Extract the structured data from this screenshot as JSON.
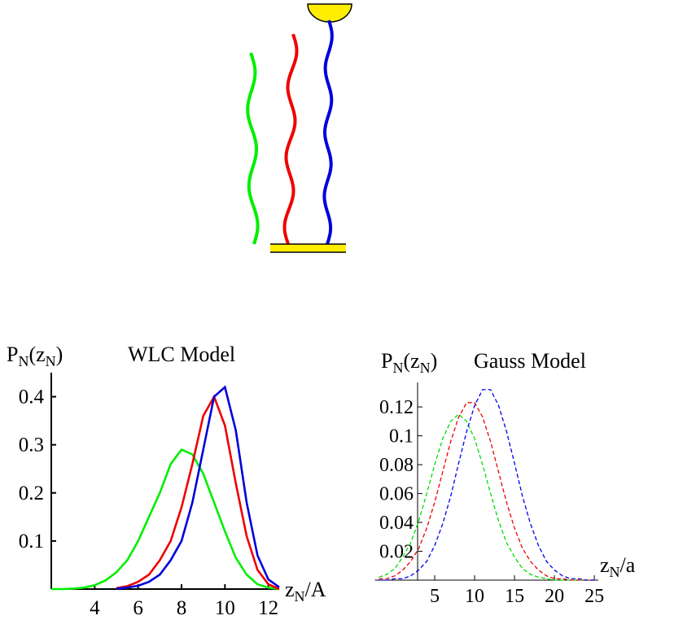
{
  "chart_data": [
    {
      "type": "line",
      "title": "WLC  Model",
      "y_label": [
        "P",
        "N",
        "(z",
        "N",
        ")"
      ],
      "x_label": [
        "z",
        "N",
        "/A"
      ],
      "x": [
        2,
        2.5,
        3,
        3.5,
        4,
        4.5,
        5,
        5.5,
        6,
        6.5,
        7,
        7.5,
        8,
        8.5,
        9,
        9.5,
        10,
        10.5,
        11,
        11.5,
        12,
        12.5
      ],
      "series": [
        {
          "color": "#00ee00",
          "dashed": false,
          "values": [
            0,
            0,
            0.001,
            0.003,
            0.008,
            0.018,
            0.035,
            0.06,
            0.1,
            0.15,
            0.2,
            0.26,
            0.29,
            0.28,
            0.24,
            0.18,
            0.12,
            0.065,
            0.03,
            0.01,
            0.003,
            0
          ]
        },
        {
          "color": "#ee0000",
          "dashed": false,
          "values": [
            null,
            null,
            null,
            null,
            null,
            null,
            0.002,
            0.006,
            0.015,
            0.03,
            0.06,
            0.1,
            0.17,
            0.26,
            0.36,
            0.4,
            0.34,
            0.22,
            0.11,
            0.04,
            0.01,
            0
          ]
        },
        {
          "color": "#0000dd",
          "dashed": false,
          "values": [
            null,
            null,
            null,
            null,
            null,
            null,
            0.001,
            0.003,
            0.007,
            0.015,
            0.03,
            0.06,
            0.1,
            0.18,
            0.29,
            0.4,
            0.42,
            0.33,
            0.18,
            0.07,
            0.02,
            0.004
          ]
        }
      ],
      "xlim": [
        2,
        12.5
      ],
      "xticks": [
        4,
        6,
        8,
        10,
        12
      ],
      "ylim": [
        0,
        0.45
      ],
      "yticks": [
        0.1,
        0.2,
        0.3,
        0.4
      ]
    },
    {
      "type": "line",
      "title": "Gauss Model",
      "y_label": [
        "P",
        "N",
        "(z",
        "N",
        ")"
      ],
      "x_label": [
        "z",
        "N",
        "/a"
      ],
      "x": [
        -2,
        -1,
        0,
        1,
        2,
        3,
        4,
        5,
        6,
        7,
        8,
        9,
        10,
        11,
        12,
        13,
        14,
        15,
        16,
        17,
        18,
        19,
        20,
        21,
        22,
        23,
        24,
        25
      ],
      "series": [
        {
          "color": "#00dd00",
          "dashed": true,
          "values": [
            0.002,
            0.004,
            0.008,
            0.016,
            0.026,
            0.041,
            0.06,
            0.08,
            0.098,
            0.11,
            0.115,
            0.11,
            0.098,
            0.08,
            0.06,
            0.041,
            0.026,
            0.016,
            0.008,
            0.004,
            0.002,
            0.001,
            0,
            0,
            0,
            0,
            0,
            0
          ]
        },
        {
          "color": "#ee0000",
          "dashed": true,
          "values": [
            0.001,
            0.001,
            0.003,
            0.007,
            0.013,
            0.022,
            0.036,
            0.054,
            0.075,
            0.096,
            0.113,
            0.123,
            0.123,
            0.113,
            0.096,
            0.075,
            0.054,
            0.036,
            0.022,
            0.013,
            0.007,
            0.003,
            0.001,
            0.001,
            0,
            0,
            0,
            0
          ]
        },
        {
          "color": "#0000ee",
          "dashed": true,
          "values": [
            0,
            0,
            0.001,
            0.001,
            0.003,
            0.007,
            0.013,
            0.024,
            0.039,
            0.058,
            0.081,
            0.103,
            0.121,
            0.132,
            0.132,
            0.121,
            0.103,
            0.081,
            0.058,
            0.039,
            0.024,
            0.013,
            0.007,
            0.003,
            0.001,
            0.001,
            0,
            0
          ]
        }
      ],
      "xlim": [
        -2.5,
        25.5
      ],
      "xticks": [
        5,
        10,
        15,
        20,
        25
      ],
      "ylim": [
        0,
        0.137
      ],
      "yticks": [
        0.02,
        0.04,
        0.06,
        0.08,
        0.1,
        0.12
      ]
    }
  ]
}
